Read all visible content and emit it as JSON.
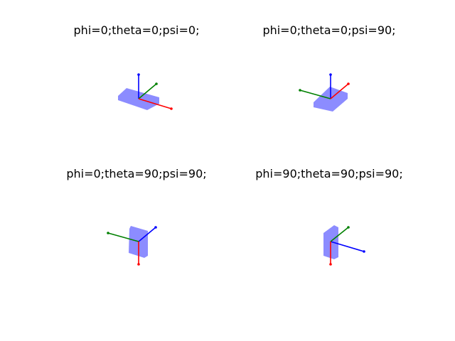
{
  "figure": {
    "axis_colors": {
      "x": "#ff0000",
      "y": "#008000",
      "z": "#0000ff"
    },
    "box_color": "#8c8cff",
    "panels": [
      {
        "title": "phi=0;theta=0;psi=0;",
        "phi": 0,
        "theta": 0,
        "psi": 0
      },
      {
        "title": "phi=0;theta=0;psi=90;",
        "phi": 0,
        "theta": 0,
        "psi": 90
      },
      {
        "title": "phi=0;theta=90;psi=90;",
        "phi": 0,
        "theta": 90,
        "psi": 90
      },
      {
        "title": "phi=90;theta=90;psi=90;",
        "phi": 90,
        "theta": 90,
        "psi": 90
      }
    ]
  }
}
